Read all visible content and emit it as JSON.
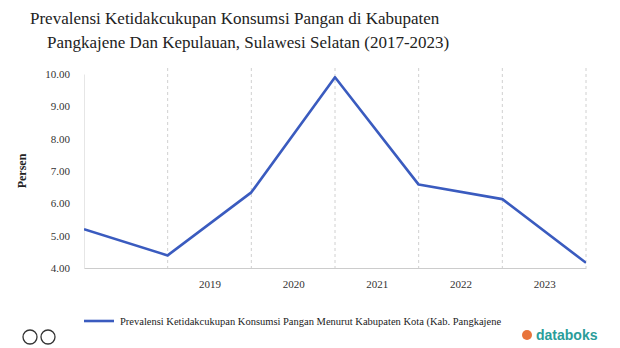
{
  "chart_data": {
    "type": "line",
    "title": "Prevalensi Ketidakcukupan Konsumsi Pangan di Kabupaten Pangkajene Dan Kepulauan, Sulawesi Selatan (2017-2023)",
    "y_label": "Persen",
    "categories": [
      null,
      null,
      "2019",
      "2020",
      "2021",
      "2022",
      "2023"
    ],
    "series": [
      {
        "name": "Prevalensi Ketidakcukupan Konsumsi Pangan Menurut Kabupaten Kota (Kab. Pangkajene",
        "color": "#3a5bbf",
        "values": [
          5.2,
          4.39,
          6.34,
          9.9,
          6.58,
          6.13,
          4.16
        ]
      }
    ],
    "ylim": [
      4,
      10
    ],
    "yticks": [
      {
        "value": 4,
        "label": "4.00"
      },
      {
        "value": 5,
        "label": "5.00"
      },
      {
        "value": 6,
        "label": "6.00"
      },
      {
        "value": 7,
        "label": "7.00"
      },
      {
        "value": 8,
        "label": "8.00"
      },
      {
        "value": 9,
        "label": "9.00"
      },
      {
        "value": 10,
        "label": "10.00"
      }
    ],
    "grid": true,
    "legend": "bottom",
    "annotations": [
      "databoks"
    ]
  }
}
